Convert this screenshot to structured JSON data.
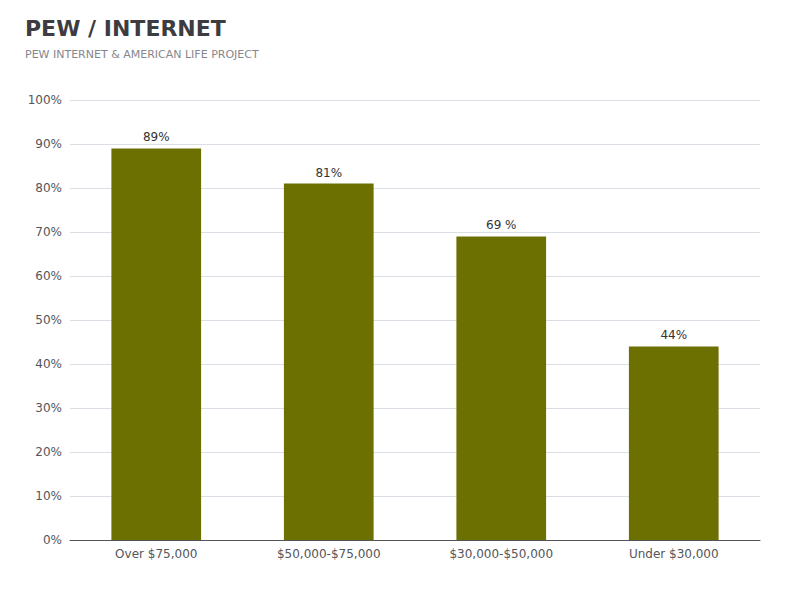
{
  "chart_data": {
    "type": "bar",
    "title": "PEW / INTERNET",
    "subtitle": "PEW INTERNET & AMERICAN LIFE PROJECT",
    "categories": [
      "Over $75,000",
      "$50,000-$75,000",
      "$30,000-$50,000",
      "Under $30,000"
    ],
    "values": [
      89,
      81,
      69,
      44
    ],
    "value_labels": [
      "89%",
      "81%",
      "69 %",
      "44%"
    ],
    "data_labels": true,
    "color": "#6b7000",
    "ylim": [
      0,
      100
    ],
    "yticks": [
      {
        "value": 0,
        "label": "0%"
      },
      {
        "value": 10,
        "label": "10%"
      },
      {
        "value": 20,
        "label": "20%"
      },
      {
        "value": 30,
        "label": "30%"
      },
      {
        "value": 40,
        "label": "40%"
      },
      {
        "value": 50,
        "label": "50%"
      },
      {
        "value": 60,
        "label": "60%"
      },
      {
        "value": 70,
        "label": "70%"
      },
      {
        "value": 80,
        "label": "80%"
      },
      {
        "value": 90,
        "label": "90%"
      },
      {
        "value": 100,
        "label": "100%"
      }
    ],
    "grid": true
  }
}
